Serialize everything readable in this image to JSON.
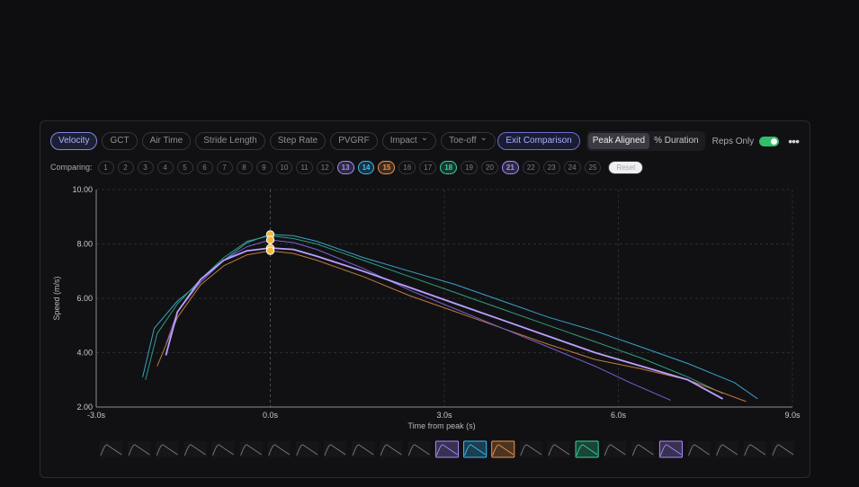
{
  "toolbar": {
    "metrics": [
      {
        "label": "Velocity",
        "active": true,
        "caret": false
      },
      {
        "label": "GCT",
        "active": false,
        "caret": false
      },
      {
        "label": "Air Time",
        "active": false,
        "caret": false
      },
      {
        "label": "Stride Length",
        "active": false,
        "caret": false
      },
      {
        "label": "Step Rate",
        "active": false,
        "caret": false
      },
      {
        "label": "PVGRF",
        "active": false,
        "caret": false
      },
      {
        "label": "Impact",
        "active": false,
        "caret": true
      },
      {
        "label": "Toe-off",
        "active": false,
        "caret": true
      }
    ],
    "exit_label": "Exit Comparison",
    "align_options": [
      "Peak Aligned",
      "% Duration"
    ],
    "align_selected": "Peak Aligned",
    "reps_only_label": "Reps Only",
    "reps_only_on": true,
    "more_glyph": "•••"
  },
  "comparing": {
    "label": "Comparing:",
    "reps": [
      "1",
      "2",
      "3",
      "4",
      "5",
      "6",
      "7",
      "8",
      "9",
      "10",
      "11",
      "12",
      "13",
      "14",
      "15",
      "16",
      "17",
      "18",
      "19",
      "20",
      "21",
      "22",
      "23",
      "24",
      "25"
    ],
    "selected": {
      "13": "#a78bfa",
      "14": "#38bdf8",
      "15": "#f0954a",
      "18": "#34d399",
      "21": "#a78bfa"
    },
    "reset_label": "Reset"
  },
  "chart_data": {
    "type": "line",
    "xlabel": "Time from peak (s)",
    "ylabel": "Speed (m/s)",
    "xlim": [
      -3.0,
      9.0
    ],
    "ylim": [
      2.0,
      10.0
    ],
    "xticks": [
      "-3.0s",
      "0.0s",
      "3.0s",
      "6.0s",
      "9.0s"
    ],
    "yticks": [
      "2.00",
      "4.00",
      "6.00",
      "8.00",
      "10.00"
    ],
    "grid": true,
    "series": [
      {
        "rep": "14",
        "color": "#3aa3c8",
        "width": 1,
        "x": [
          -2.2,
          -2.0,
          -1.6,
          -1.2,
          -0.8,
          -0.4,
          0,
          0.4,
          0.8,
          1.6,
          2.4,
          3.2,
          4.0,
          4.8,
          5.6,
          6.4,
          7.2,
          8.0,
          8.4
        ],
        "y": [
          3.1,
          4.9,
          5.9,
          6.6,
          7.4,
          8.05,
          8.35,
          8.3,
          8.1,
          7.5,
          7.0,
          6.5,
          5.9,
          5.3,
          4.8,
          4.2,
          3.6,
          2.9,
          2.3
        ]
      },
      {
        "rep": "18",
        "color": "#2e9e7a",
        "width": 1,
        "x": [
          -2.15,
          -1.95,
          -1.6,
          -1.2,
          -0.8,
          -0.4,
          0,
          0.4,
          0.8,
          1.6,
          2.4,
          3.2,
          4.0,
          4.8,
          5.6,
          6.4,
          7.2,
          7.8
        ],
        "y": [
          3.0,
          4.7,
          5.8,
          6.7,
          7.5,
          8.1,
          8.3,
          8.2,
          8.0,
          7.4,
          6.8,
          6.2,
          5.6,
          5.0,
          4.4,
          3.8,
          3.1,
          2.5
        ]
      },
      {
        "rep": "15",
        "color": "#c27a3a",
        "width": 1,
        "x": [
          -1.95,
          -1.6,
          -1.2,
          -0.8,
          -0.4,
          0,
          0.4,
          0.8,
          1.6,
          2.4,
          3.2,
          4.0,
          4.8,
          5.6,
          6.4,
          7.2,
          8.2
        ],
        "y": [
          3.5,
          5.3,
          6.5,
          7.2,
          7.6,
          7.75,
          7.65,
          7.4,
          6.8,
          6.1,
          5.5,
          4.9,
          4.3,
          3.75,
          3.4,
          3.0,
          2.2
        ]
      },
      {
        "rep": "13",
        "color": "#7c5fcf",
        "width": 1,
        "x": [
          -1.8,
          -1.6,
          -1.2,
          -0.8,
          -0.4,
          0,
          0.4,
          0.8,
          1.6,
          2.4,
          3.2,
          4.0,
          4.8,
          5.6,
          6.2,
          6.9
        ],
        "y": [
          4.3,
          5.5,
          6.6,
          7.4,
          7.9,
          8.15,
          8.05,
          7.8,
          7.1,
          6.3,
          5.6,
          4.9,
          4.2,
          3.5,
          2.9,
          2.25
        ]
      },
      {
        "rep": "21",
        "color": "#b9a0ff",
        "width": 1.8,
        "x": [
          -1.8,
          -1.6,
          -1.2,
          -0.8,
          -0.4,
          0,
          0.4,
          0.8,
          1.6,
          2.4,
          3.2,
          4.0,
          4.8,
          5.6,
          6.4,
          7.2,
          7.8
        ],
        "y": [
          3.9,
          5.5,
          6.7,
          7.4,
          7.75,
          7.85,
          7.8,
          7.55,
          7.0,
          6.4,
          5.8,
          5.2,
          4.6,
          4.0,
          3.5,
          3.0,
          2.3
        ]
      }
    ],
    "peak_markers": [
      {
        "x": 0,
        "y": 8.35
      },
      {
        "x": 0,
        "y": 8.15
      },
      {
        "x": 0,
        "y": 7.85
      },
      {
        "x": 0,
        "y": 7.75
      }
    ],
    "peak_marker_color": "#f5b83b"
  },
  "strip": {
    "count": 25,
    "highlight": {
      "13": "#a78bfa",
      "14": "#38bdf8",
      "15": "#f0954a",
      "18": "#34d399",
      "21": "#a78bfa"
    }
  }
}
